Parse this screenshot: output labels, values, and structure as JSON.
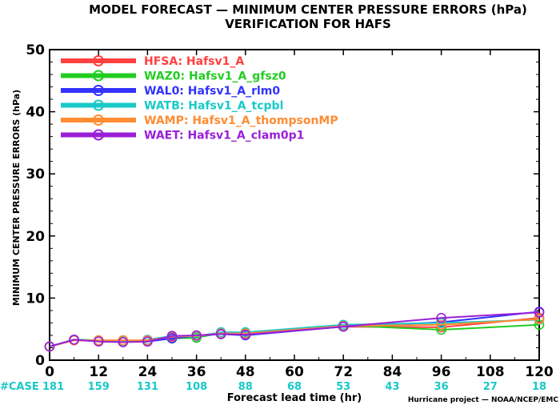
{
  "chart_data": {
    "type": "line",
    "title": "MODEL FORECAST — MINIMUM CENTER PRESSURE ERRORS (hPa)",
    "subtitle": "VERIFICATION FOR HAFS",
    "xlabel": "Forecast lead time (hr)",
    "ylabel": "MINIMUM CENTER PRESSURE ERRORS (hPa)",
    "xlim": [
      0,
      120
    ],
    "ylim": [
      0,
      50
    ],
    "x_ticks": [
      "0",
      "12",
      "24",
      "36",
      "48",
      "60",
      "72",
      "84",
      "96",
      "108",
      "120"
    ],
    "y_ticks": [
      "0",
      "10",
      "20",
      "30",
      "40",
      "50"
    ],
    "x": [
      0,
      6,
      12,
      18,
      24,
      30,
      36,
      42,
      48,
      72,
      96,
      120
    ],
    "legend_position": "top-left",
    "series": [
      {
        "name": "HFSA:  Hafsv1_A",
        "color": "#ff4040",
        "values": [
          2.2,
          3.2,
          3.1,
          3.2,
          3.1,
          3.7,
          3.9,
          4.4,
          4.4,
          5.4,
          5.3,
          6.8
        ]
      },
      {
        "name": "WAZ0:  Hafsv1_A_gfsz0",
        "color": "#22cc22",
        "values": [
          2.2,
          3.3,
          3.2,
          3.1,
          3.2,
          3.5,
          3.6,
          4.4,
          4.3,
          5.6,
          4.9,
          5.7
        ]
      },
      {
        "name": "WAL0:  Hafsv1_A_rlm0",
        "color": "#3333ff",
        "values": [
          2.2,
          3.3,
          3.1,
          3.0,
          3.0,
          3.5,
          3.9,
          4.2,
          4.0,
          5.4,
          6.1,
          7.8
        ]
      },
      {
        "name": "WATB:  Hafsv1_A_tcpbl",
        "color": "#19c8c8",
        "values": [
          2.2,
          3.3,
          3.2,
          3.0,
          3.3,
          3.9,
          3.8,
          4.5,
          4.5,
          5.7,
          6.0,
          6.5
        ]
      },
      {
        "name": "WAMP:  Hafsv1_A_thompsonMP",
        "color": "#ff8c33",
        "values": [
          2.2,
          3.2,
          3.2,
          3.2,
          3.2,
          3.8,
          3.9,
          4.3,
          4.3,
          5.5,
          5.7,
          6.6
        ]
      },
      {
        "name": "WAET:  Hafsv1_A_clam0p1",
        "color": "#9a1fd6",
        "values": [
          2.2,
          3.3,
          3.0,
          2.9,
          3.0,
          3.9,
          4.0,
          4.2,
          4.1,
          5.4,
          6.8,
          7.7
        ]
      }
    ],
    "case_label": "#CASE",
    "case_color": "#19c8c8",
    "cases": [
      {
        "x": 0,
        "n": "181"
      },
      {
        "x": 12,
        "n": "159"
      },
      {
        "x": 24,
        "n": "131"
      },
      {
        "x": 36,
        "n": "108"
      },
      {
        "x": 48,
        "n": "88"
      },
      {
        "x": 60,
        "n": "68"
      },
      {
        "x": 72,
        "n": "53"
      },
      {
        "x": 84,
        "n": "43"
      },
      {
        "x": 96,
        "n": "36"
      },
      {
        "x": 108,
        "n": "27"
      },
      {
        "x": 120,
        "n": "18"
      }
    ],
    "credit": "Hurricane project — NOAA/NCEP/EMC"
  }
}
